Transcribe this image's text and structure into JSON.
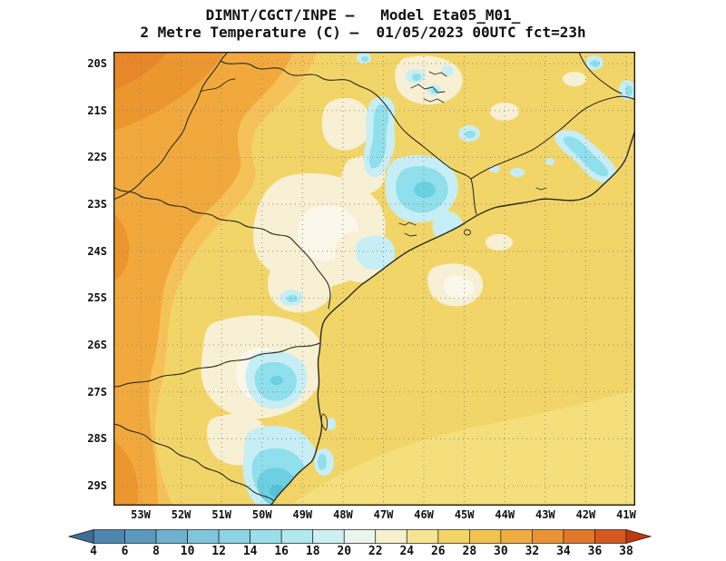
{
  "header": {
    "title_line1": "DIMNT/CGCT/INPE –   Model Eta05_M01_",
    "title_line2": "2 Metre Temperature (C) –  01/05/2023 00UTC fct=23h"
  },
  "map": {
    "lat_labels": [
      "20S",
      "21S",
      "22S",
      "23S",
      "24S",
      "25S",
      "26S",
      "27S",
      "28S",
      "29S"
    ],
    "lon_labels": [
      "53W",
      "52W",
      "51W",
      "50W",
      "49W",
      "48W",
      "47W",
      "46W",
      "45W",
      "44W",
      "43W",
      "42W",
      "41W"
    ]
  },
  "colorbar": {
    "ticks": [
      "4",
      "6",
      "8",
      "10",
      "12",
      "14",
      "16",
      "18",
      "20",
      "22",
      "24",
      "26",
      "28",
      "30",
      "32",
      "34",
      "36",
      "38"
    ],
    "segment_colors": [
      "#4E86B0",
      "#5C99BE",
      "#6FB2D0",
      "#7FC6DC",
      "#8BD4E4",
      "#9BDEE9",
      "#B2E8EF",
      "#CDF0F3",
      "#E9F5EE",
      "#F6F0CC",
      "#F5E492",
      "#F2D564",
      "#F0C350",
      "#EFAC40",
      "#E99434",
      "#E17828",
      "#D6581E"
    ],
    "left_arrow_color": "#3F6E95",
    "right_arrow_color": "#BE3A10"
  },
  "palette": {
    "base_yellow": "#F2D569",
    "pale_yellow": "#F4DF7C",
    "cream": "#F8F0D4",
    "near_white": "#FBF7EA",
    "cyan_light": "#C7EEF4",
    "cyan": "#8FDFEC",
    "cyan_deep": "#6CCFE2",
    "cyan_deepest": "#55C2D8",
    "orange_light": "#F5C25A",
    "orange": "#F1A93E",
    "orange_deep": "#EC9630",
    "orange_deepest": "#E8862A",
    "line": "#2B2A20",
    "grid": "#8E8870",
    "frame": "#1A1A1A"
  },
  "chart_data": {
    "type": "heatmap",
    "title": "2 Metre Temperature (C)",
    "institution_model_line": "DIMNT/CGCT/INPE – Model Eta05_M01_",
    "valid_line": "01/05/2023 00UTC fct=23h",
    "units": "C",
    "lat_ticks": [
      "20S",
      "21S",
      "22S",
      "23S",
      "24S",
      "25S",
      "26S",
      "27S",
      "28S",
      "29S"
    ],
    "lon_ticks": [
      "53W",
      "52W",
      "51W",
      "50W",
      "49W",
      "48W",
      "47W",
      "46W",
      "45W",
      "44W",
      "43W",
      "42W",
      "41W"
    ],
    "scale_values": [
      4,
      6,
      8,
      10,
      12,
      14,
      16,
      18,
      20,
      22,
      24,
      26,
      28,
      30,
      32,
      34,
      36,
      38
    ],
    "legend_position": "bottom"
  }
}
